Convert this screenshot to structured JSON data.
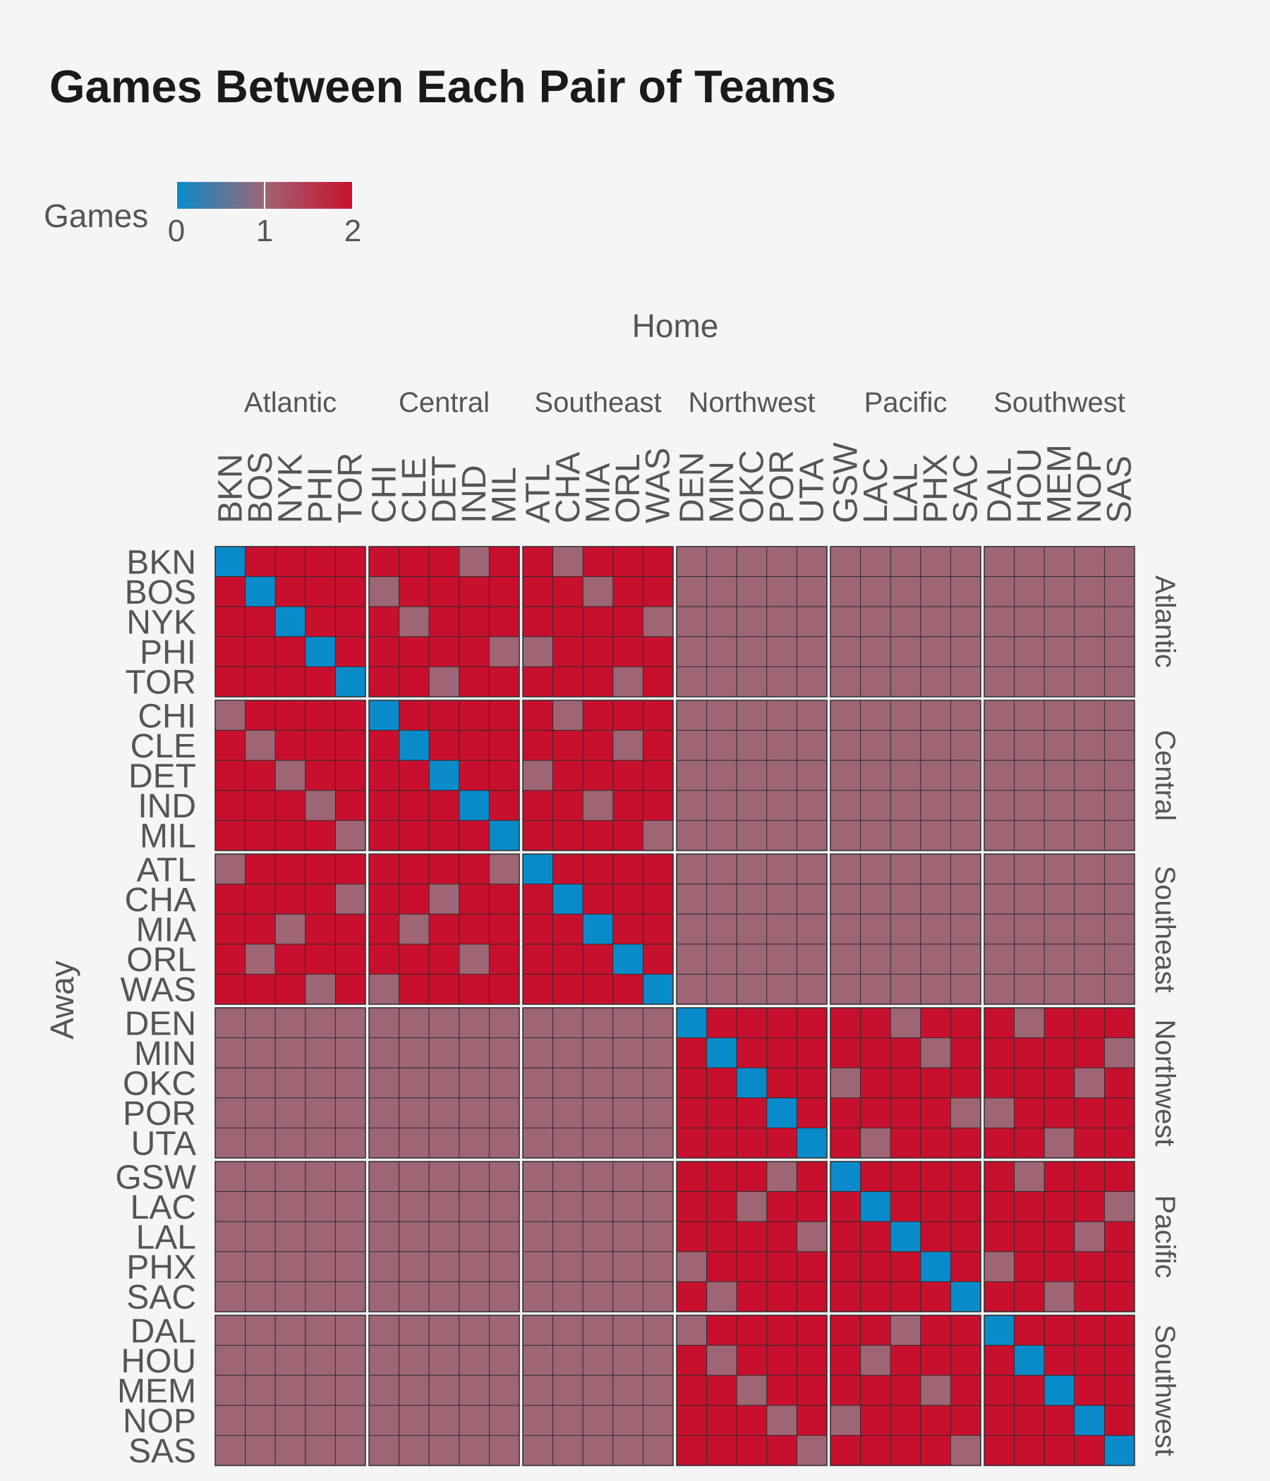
{
  "chart_data": {
    "type": "heatmap",
    "title": "Games Between Each Pair of Teams",
    "xlabel": "Home",
    "ylabel": "Away",
    "legend": {
      "title": "Games",
      "ticks": [
        "0",
        "1",
        "2"
      ],
      "min": 0,
      "max": 2,
      "placement": "top-left",
      "colors": {
        "low": "#0a8bc9",
        "mid": "#9e6574",
        "high": "#c8102e"
      }
    },
    "divisions": [
      {
        "name": "Atlantic",
        "teams": [
          "BKN",
          "BOS",
          "NYK",
          "PHI",
          "TOR"
        ]
      },
      {
        "name": "Central",
        "teams": [
          "CHI",
          "CLE",
          "DET",
          "IND",
          "MIL"
        ]
      },
      {
        "name": "Southeast",
        "teams": [
          "ATL",
          "CHA",
          "MIA",
          "ORL",
          "WAS"
        ]
      },
      {
        "name": "Northwest",
        "teams": [
          "DEN",
          "MIN",
          "OKC",
          "POR",
          "UTA"
        ]
      },
      {
        "name": "Pacific",
        "teams": [
          "GSW",
          "LAC",
          "LAL",
          "PHX",
          "SAC"
        ]
      },
      {
        "name": "Southwest",
        "teams": [
          "DAL",
          "HOU",
          "MEM",
          "NOP",
          "SAS"
        ]
      }
    ],
    "teams": [
      "BKN",
      "BOS",
      "NYK",
      "PHI",
      "TOR",
      "CHI",
      "CLE",
      "DET",
      "IND",
      "MIL",
      "ATL",
      "CHA",
      "MIA",
      "ORL",
      "WAS",
      "DEN",
      "MIN",
      "OKC",
      "POR",
      "UTA",
      "GSW",
      "LAC",
      "LAL",
      "PHX",
      "SAC",
      "DAL",
      "HOU",
      "MEM",
      "NOP",
      "SAS"
    ],
    "conference_grouping": [
      [
        0,
        1,
        2
      ],
      [
        3,
        4,
        5
      ]
    ],
    "cross_conference_value": 1,
    "grid": true,
    "values": [
      [
        0,
        2,
        2,
        2,
        2,
        2,
        2,
        2,
        1,
        2,
        2,
        1,
        2,
        2,
        2
      ],
      [
        2,
        0,
        2,
        2,
        2,
        1,
        2,
        2,
        2,
        2,
        2,
        2,
        1,
        2,
        2
      ],
      [
        2,
        2,
        0,
        2,
        2,
        2,
        1,
        2,
        2,
        2,
        2,
        2,
        2,
        2,
        1
      ],
      [
        2,
        2,
        2,
        0,
        2,
        2,
        2,
        2,
        2,
        1,
        1,
        2,
        2,
        2,
        2
      ],
      [
        2,
        2,
        2,
        2,
        0,
        2,
        2,
        1,
        2,
        2,
        2,
        2,
        2,
        1,
        2
      ],
      [
        1,
        2,
        2,
        2,
        2,
        0,
        2,
        2,
        2,
        2,
        2,
        1,
        2,
        2,
        2
      ],
      [
        2,
        1,
        2,
        2,
        2,
        2,
        0,
        2,
        2,
        2,
        2,
        2,
        2,
        1,
        2
      ],
      [
        2,
        2,
        1,
        2,
        2,
        2,
        2,
        0,
        2,
        2,
        1,
        2,
        2,
        2,
        2
      ],
      [
        2,
        2,
        2,
        1,
        2,
        2,
        2,
        2,
        0,
        2,
        2,
        2,
        1,
        2,
        2
      ],
      [
        2,
        2,
        2,
        2,
        1,
        2,
        2,
        2,
        2,
        0,
        2,
        2,
        2,
        2,
        1
      ],
      [
        1,
        2,
        2,
        2,
        2,
        2,
        2,
        2,
        2,
        1,
        0,
        2,
        2,
        2,
        2
      ],
      [
        2,
        2,
        2,
        2,
        1,
        2,
        2,
        1,
        2,
        2,
        2,
        0,
        2,
        2,
        2
      ],
      [
        2,
        2,
        1,
        2,
        2,
        2,
        1,
        2,
        2,
        2,
        2,
        2,
        0,
        2,
        2
      ],
      [
        2,
        1,
        2,
        2,
        2,
        2,
        2,
        2,
        1,
        2,
        2,
        2,
        2,
        0,
        2
      ],
      [
        2,
        2,
        2,
        1,
        2,
        1,
        2,
        2,
        2,
        2,
        2,
        2,
        2,
        2,
        0
      ],
      [
        0,
        2,
        2,
        2,
        2,
        2,
        2,
        1,
        2,
        2,
        2,
        1,
        2,
        2,
        2
      ],
      [
        2,
        0,
        2,
        2,
        2,
        2,
        2,
        2,
        1,
        2,
        2,
        2,
        2,
        2,
        1
      ],
      [
        2,
        2,
        0,
        2,
        2,
        1,
        2,
        2,
        2,
        2,
        2,
        2,
        2,
        1,
        2
      ],
      [
        2,
        2,
        2,
        0,
        2,
        2,
        2,
        2,
        2,
        1,
        1,
        2,
        2,
        2,
        2
      ],
      [
        2,
        2,
        2,
        2,
        0,
        2,
        1,
        2,
        2,
        2,
        2,
        2,
        1,
        2,
        2
      ],
      [
        2,
        2,
        2,
        1,
        2,
        0,
        2,
        2,
        2,
        2,
        2,
        1,
        2,
        2,
        2
      ],
      [
        2,
        2,
        1,
        2,
        2,
        2,
        0,
        2,
        2,
        2,
        2,
        2,
        2,
        2,
        1
      ],
      [
        2,
        2,
        2,
        2,
        1,
        2,
        2,
        0,
        2,
        2,
        2,
        2,
        2,
        1,
        2
      ],
      [
        1,
        2,
        2,
        2,
        2,
        2,
        2,
        2,
        0,
        2,
        1,
        2,
        2,
        2,
        2
      ],
      [
        2,
        1,
        2,
        2,
        2,
        2,
        2,
        2,
        2,
        0,
        2,
        2,
        1,
        2,
        2
      ],
      [
        1,
        2,
        2,
        2,
        2,
        2,
        2,
        1,
        2,
        2,
        0,
        2,
        2,
        2,
        2
      ],
      [
        2,
        1,
        2,
        2,
        2,
        2,
        1,
        2,
        2,
        2,
        2,
        0,
        2,
        2,
        2
      ],
      [
        2,
        2,
        1,
        2,
        2,
        2,
        2,
        2,
        1,
        2,
        2,
        2,
        0,
        2,
        2
      ],
      [
        2,
        2,
        2,
        1,
        2,
        1,
        2,
        2,
        2,
        2,
        2,
        2,
        2,
        0,
        2
      ],
      [
        2,
        2,
        2,
        2,
        1,
        2,
        2,
        2,
        2,
        1,
        2,
        2,
        2,
        2,
        0
      ]
    ]
  }
}
